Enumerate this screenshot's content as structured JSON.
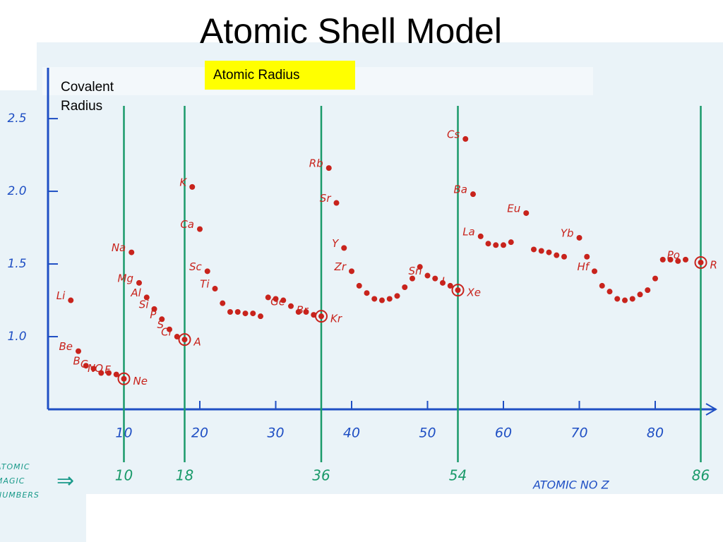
{
  "chart_data": {
    "type": "scatter",
    "title": "Atomic Shell Model",
    "y_label": "Covalent Radius",
    "x_label": "ATOMIC NO Z",
    "note": "ATOMIC MAGIC NUMBERS",
    "series": [
      {
        "name": "Atomic Radius",
        "color": "#c8231c",
        "x": [
          3,
          4,
          5,
          6,
          7,
          8,
          9,
          10,
          11,
          12,
          13,
          14,
          15,
          16,
          17,
          18,
          19,
          20,
          21,
          22,
          23,
          24,
          25,
          26,
          27,
          28,
          29,
          30,
          31,
          32,
          33,
          34,
          35,
          36,
          37,
          38,
          39,
          40,
          41,
          42,
          43,
          44,
          45,
          46,
          47,
          48,
          49,
          50,
          51,
          52,
          53,
          54,
          55,
          56,
          57,
          58,
          59,
          60,
          61,
          63,
          64,
          65,
          66,
          67,
          68,
          70,
          71,
          72,
          73,
          74,
          75,
          76,
          77,
          78,
          79,
          80,
          81,
          82,
          83,
          84,
          86
        ],
        "values": [
          1.25,
          0.9,
          0.8,
          0.78,
          0.75,
          0.75,
          0.74,
          0.71,
          1.58,
          1.37,
          1.27,
          1.19,
          1.12,
          1.05,
          1.0,
          0.98,
          2.03,
          1.74,
          1.45,
          1.33,
          1.23,
          1.17,
          1.17,
          1.16,
          1.16,
          1.14,
          1.27,
          1.26,
          1.25,
          1.21,
          1.17,
          1.17,
          1.15,
          1.14,
          2.16,
          1.92,
          1.61,
          1.45,
          1.35,
          1.3,
          1.26,
          1.25,
          1.26,
          1.28,
          1.34,
          1.4,
          1.48,
          1.42,
          1.4,
          1.37,
          1.35,
          1.32,
          2.36,
          1.98,
          1.69,
          1.64,
          1.63,
          1.63,
          1.65,
          1.85,
          1.6,
          1.59,
          1.58,
          1.56,
          1.55,
          1.68,
          1.55,
          1.45,
          1.35,
          1.31,
          1.26,
          1.25,
          1.26,
          1.29,
          1.32,
          1.4,
          1.53,
          1.53,
          1.52,
          1.53,
          1.51
        ],
        "point_labels": [
          "Li",
          "Be",
          "B",
          "C",
          "N",
          "O",
          "F",
          "Ne",
          "Na",
          "Mg",
          "Al",
          "Si",
          "P",
          "S",
          "Cl",
          "A",
          "K",
          "Ca",
          "Sc",
          "Ti",
          null,
          null,
          null,
          null,
          null,
          null,
          null,
          null,
          null,
          "Ge",
          null,
          null,
          "Br",
          "Kr",
          "Rb",
          "Sr",
          "Y",
          "Zr",
          null,
          null,
          null,
          null,
          null,
          null,
          null,
          null,
          null,
          "Sn",
          null,
          null,
          "I",
          "Xe",
          "Cs",
          "Ba",
          "La",
          null,
          null,
          null,
          null,
          "Eu",
          null,
          null,
          null,
          null,
          null,
          "Yb",
          null,
          "Hf",
          null,
          null,
          null,
          null,
          null,
          null,
          null,
          null,
          null,
          null,
          null,
          "Po",
          "R"
        ]
      }
    ],
    "magic_numbers": [
      10,
      18,
      36,
      54,
      86
    ],
    "magic_color": "#1a9a6a",
    "axis_color": "#1f4fc4",
    "xlim": [
      0,
      88
    ],
    "ylim": [
      0.5,
      2.85
    ],
    "xticks": [
      10,
      20,
      30,
      40,
      50,
      60,
      70,
      80
    ],
    "yticks": [
      {
        "value": 1.0,
        "label": "1.0"
      },
      {
        "value": 1.5,
        "label": "1.5"
      },
      {
        "value": 2.0,
        "label": "2.0"
      },
      2.5
    ]
  }
}
